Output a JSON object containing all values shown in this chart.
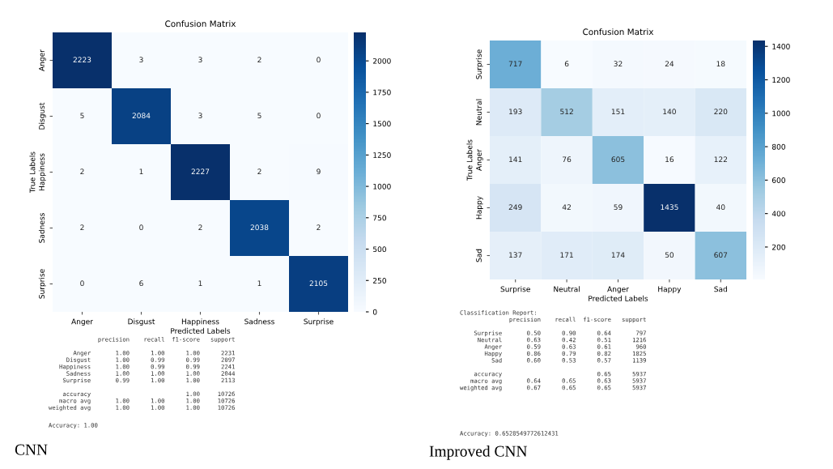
{
  "chart_data": [
    {
      "type": "heatmap",
      "title": "Confusion Matrix",
      "xlabel": "Predicted Labels",
      "ylabel": "True Labels",
      "categories": [
        "Anger",
        "Disgust",
        "Happiness",
        "Sadness",
        "Surprise"
      ],
      "y_categories": [
        "Anger",
        "Disgust",
        "Happiness",
        "Sadness",
        "Surprise"
      ],
      "cells": [
        [
          2223,
          3,
          3,
          2,
          0
        ],
        [
          5,
          2084,
          3,
          5,
          0
        ],
        [
          2,
          1,
          2227,
          2,
          9
        ],
        [
          2,
          0,
          2,
          2038,
          2
        ],
        [
          0,
          6,
          1,
          1,
          2105
        ]
      ],
      "data_labels": true,
      "clim": [
        0,
        2227
      ],
      "cticks": [
        0,
        250,
        500,
        750,
        1000,
        1250,
        1500,
        1750,
        2000
      ],
      "annotations": [
        "              precision    recall  f1-score   support\n\n       Anger       1.00      1.00      1.00      2231\n     Disgust       1.00      0.99      0.99      2097\n   Happiness       1.00      0.99      0.99      2241\n     Sadness       1.00      1.00      1.00      2044\n    Surprise       0.99      1.00      1.00      2113\n\n    accuracy                           1.00     10726\n   macro avg       1.00      1.00      1.00     10726\nweighted avg       1.00      1.00      1.00     10726",
        "Accuracy: 1.00",
        "CNN"
      ]
    },
    {
      "type": "heatmap",
      "title": "Confusion Matrix",
      "xlabel": "Predicted Labels",
      "ylabel": "True Labels",
      "categories": [
        "Surprise",
        "Neutral",
        "Anger",
        "Happy",
        "Sad"
      ],
      "y_categories": [
        "Surprise",
        "Neutral",
        "Anger",
        "Happy",
        "Sad"
      ],
      "cells": [
        [
          717,
          6,
          32,
          24,
          18
        ],
        [
          193,
          512,
          151,
          140,
          220
        ],
        [
          141,
          76,
          605,
          16,
          122
        ],
        [
          249,
          42,
          59,
          1435,
          40
        ],
        [
          137,
          171,
          174,
          50,
          607
        ]
      ],
      "data_labels": true,
      "clim": [
        6,
        1435
      ],
      "cticks": [
        200,
        400,
        600,
        800,
        1000,
        1200,
        1400
      ],
      "annotations": [
        "Classification Report:\n              precision    recall  f1-score   support\n\n    Surprise       0.50      0.90      0.64       797\n     Neutral       0.63      0.42      0.51      1216\n       Anger       0.59      0.63      0.61       960\n       Happy       0.86      0.79      0.82      1825\n         Sad       0.60      0.53      0.57      1139\n\n    accuracy                           0.65      5937\n   macro avg       0.64      0.65      0.63      5937\nweighted avg       0.67      0.65      0.65      5937",
        "Accuracy: 0.6528549772612431",
        "Improved CNN"
      ]
    }
  ]
}
